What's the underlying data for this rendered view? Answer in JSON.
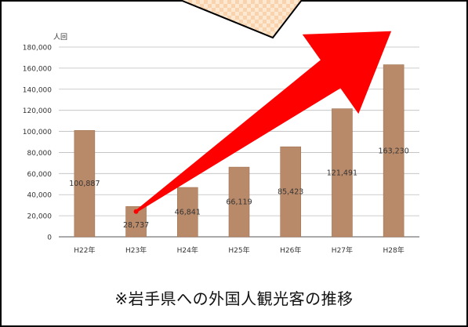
{
  "chart_data": {
    "type": "bar",
    "ylabel": "人回",
    "ylim": [
      0,
      180000
    ],
    "yticks": [
      "0",
      "20,000",
      "40,000",
      "60,000",
      "80,000",
      "100,000",
      "120,000",
      "140,000",
      "160,000",
      "180,000"
    ],
    "ytick_values": [
      0,
      20000,
      40000,
      60000,
      80000,
      100000,
      120000,
      140000,
      160000,
      180000
    ],
    "categories": [
      "H22年",
      "H23年",
      "H24年",
      "H25年",
      "H26年",
      "H27年",
      "H28年"
    ],
    "values": [
      100887,
      28737,
      46841,
      66119,
      85423,
      121491,
      163230
    ],
    "labels": [
      "100,887",
      "28,737",
      "46,841",
      "66,119",
      "85,423",
      "121,491",
      "163,230"
    ],
    "grid": true,
    "bar_color": "#b98a6a",
    "annotation": {
      "type": "arrow",
      "color": "#ff0000",
      "from_category": "H23年",
      "from_value": 24000,
      "to_category": "H28年",
      "to_value": 178000
    }
  },
  "caption": "※岩手県への外国人観光客の推移"
}
